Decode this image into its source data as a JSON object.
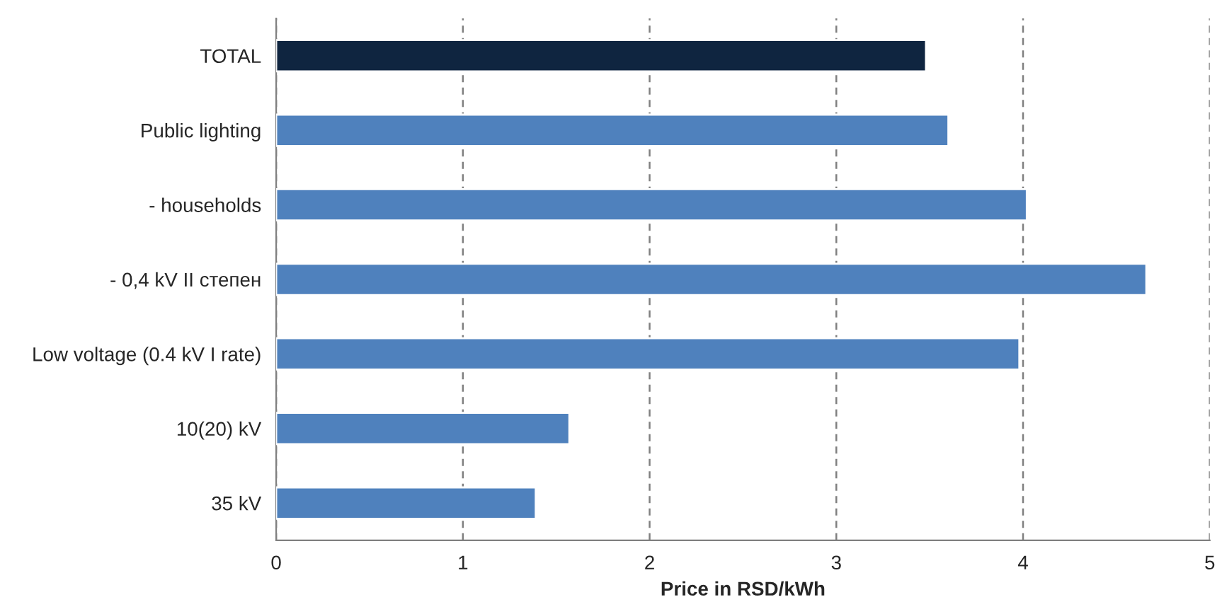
{
  "chart_data": {
    "type": "bar",
    "orientation": "horizontal",
    "xlabel": "Price in RSD/kWh",
    "categories": [
      "TOTAL",
      "Public lighting",
      "- households",
      "- 0,4 kV II степен",
      "Low voltage (0.4 kV I rate)",
      "10(20) kV",
      "35 kV"
    ],
    "values": [
      3.48,
      3.6,
      4.02,
      4.66,
      3.98,
      1.57,
      1.39
    ],
    "colors": [
      "#0f2540",
      "#4f81bd",
      "#4f81bd",
      "#4f81bd",
      "#4f81bd",
      "#4f81bd",
      "#4f81bd"
    ],
    "xlim": [
      0,
      5
    ],
    "xticks": [
      0,
      1,
      2,
      3,
      4,
      5
    ],
    "grid": "x",
    "legend": false
  }
}
